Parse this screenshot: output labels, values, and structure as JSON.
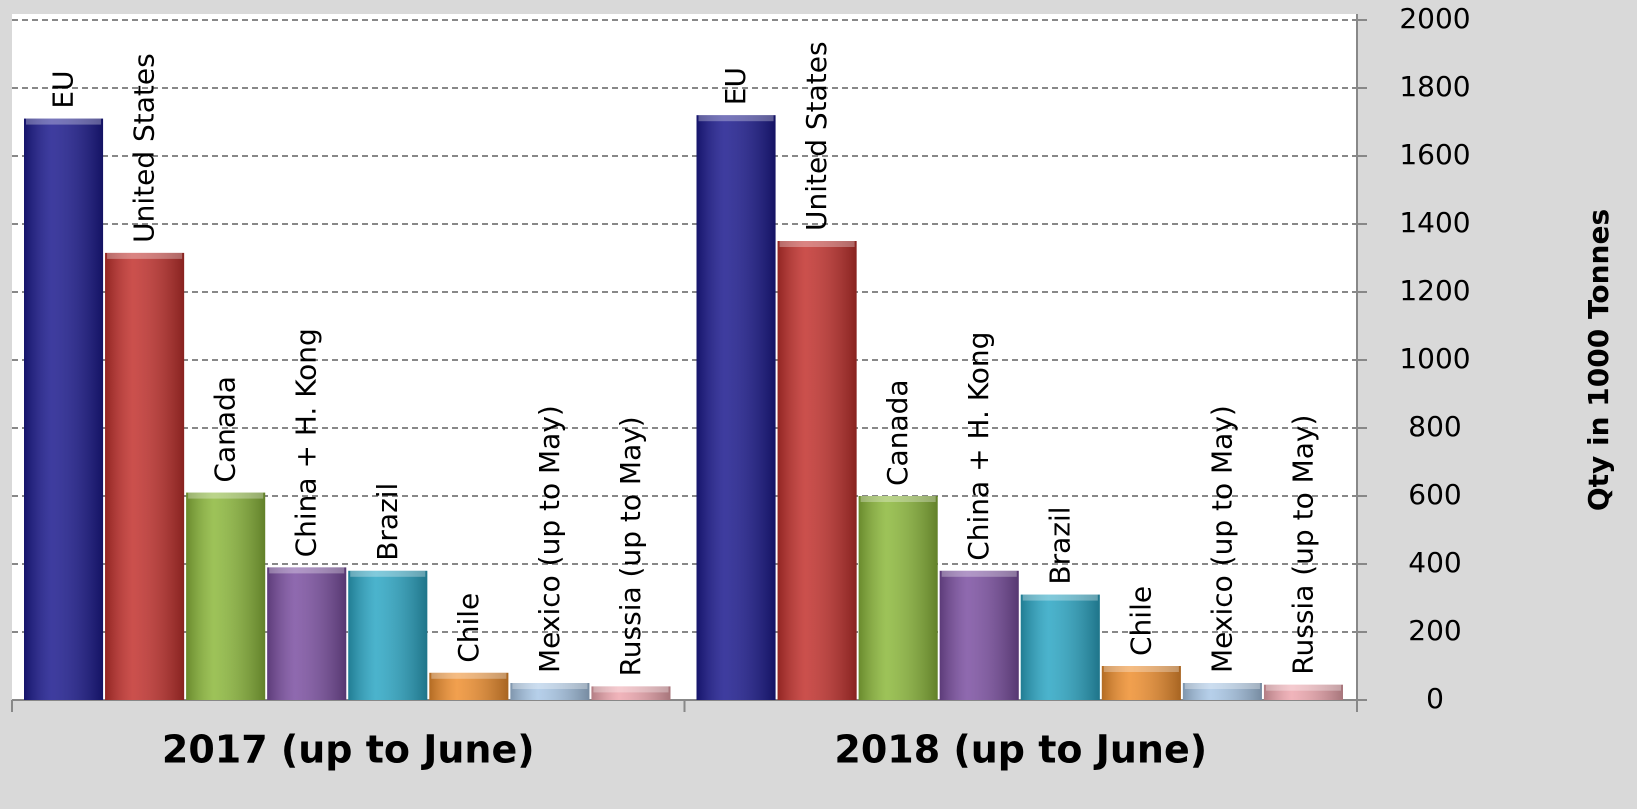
{
  "chart_data": {
    "type": "bar",
    "y_label": "Qty in 1000 Tonnes",
    "categories": [
      "2017 (up to June)",
      "2018 (up to June)"
    ],
    "series": [
      {
        "name": "EU",
        "color": "#1c1a8e",
        "values": [
          1710,
          1720
        ]
      },
      {
        "name": "United States",
        "color": "#c2312d",
        "values": [
          1315,
          1350
        ]
      },
      {
        "name": "Canada",
        "color": "#8cb83b",
        "values": [
          610,
          600
        ]
      },
      {
        "name": "China + H. Kong",
        "color": "#7b4fa1",
        "values": [
          390,
          380
        ]
      },
      {
        "name": "Brazil",
        "color": "#2ba6c4",
        "values": [
          380,
          310
        ]
      },
      {
        "name": "Chile",
        "color": "#ef8f2f",
        "values": [
          80,
          100
        ]
      },
      {
        "name": "Mexico (up to May)",
        "color": "#a9c7e6",
        "values": [
          50,
          50
        ]
      },
      {
        "name": "Russia (up to May)",
        "color": "#eea7af",
        "values": [
          40,
          45
        ]
      }
    ],
    "ylim": [
      0,
      2000
    ],
    "yticks": [
      0,
      200,
      400,
      600,
      800,
      1000,
      1200,
      1400,
      1600,
      1800,
      2000
    ],
    "grid": true
  }
}
